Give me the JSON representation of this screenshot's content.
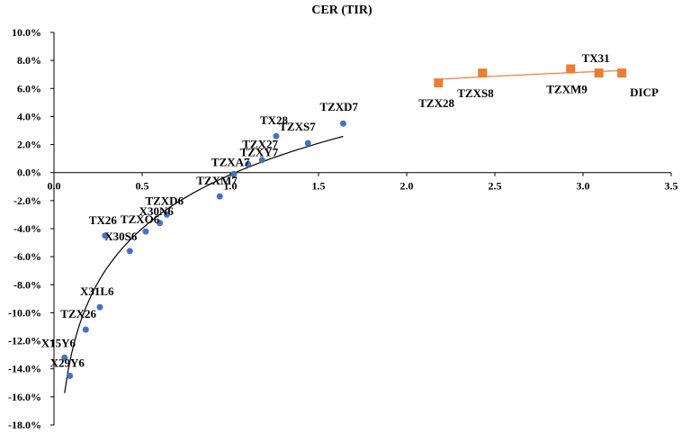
{
  "chart_data": {
    "type": "scatter",
    "title": "CER (TIR)",
    "xlabel": "",
    "ylabel": "",
    "xlim": [
      0,
      3.5
    ],
    "ylim": [
      -18,
      10
    ],
    "x_ticks": [
      "0.0",
      "0.5",
      "1.0",
      "1.5",
      "2.0",
      "2.5",
      "3.0",
      "3.5"
    ],
    "y_ticks": [
      "10.0%",
      "8.0%",
      "6.0%",
      "4.0%",
      "2.0%",
      "0.0%",
      "-2.0%",
      "-4.0%",
      "-6.0%",
      "-8.0%",
      "-10.0%",
      "-12.0%",
      "-14.0%",
      "-16.0%",
      "-18.0%"
    ],
    "grid": false,
    "legend": "none",
    "series": [
      {
        "marker": "circle",
        "color": "#4472c4",
        "trendline": "logarithmic",
        "trend_color": "#000000",
        "points": [
          {
            "label": "X29Y6",
            "x": 0.09,
            "y": -14.5
          },
          {
            "label": "X15Y6",
            "x": 0.06,
            "y": -13.2
          },
          {
            "label": "TZX26",
            "x": 0.18,
            "y": -11.2
          },
          {
            "label": "X31L6",
            "x": 0.26,
            "y": -9.6
          },
          {
            "label": "TX26",
            "x": 0.29,
            "y": -4.5
          },
          {
            "label": "X30S6",
            "x": 0.43,
            "y": -5.6
          },
          {
            "label": "TZXO6",
            "x": 0.52,
            "y": -4.2
          },
          {
            "label": "X30N6",
            "x": 0.6,
            "y": -3.6
          },
          {
            "label": "TZXD6",
            "x": 0.64,
            "y": -3.0
          },
          {
            "label": "TZXM7",
            "x": 0.94,
            "y": -1.7
          },
          {
            "label": "TZXA7",
            "x": 1.02,
            "y": -0.1
          },
          {
            "label": "TZXY7",
            "x": 1.1,
            "y": 0.6
          },
          {
            "label": "TZX27",
            "x": 1.18,
            "y": 0.9
          },
          {
            "label": "TX28",
            "x": 1.26,
            "y": 2.6
          },
          {
            "label": "TZXS7",
            "x": 1.44,
            "y": 2.1
          },
          {
            "label": "TZXD7",
            "x": 1.64,
            "y": 3.5
          }
        ]
      },
      {
        "marker": "square",
        "color": "#ed7d31",
        "trendline": "logarithmic",
        "trend_color": "#ed7d31",
        "points": [
          {
            "label": "TZX28",
            "x": 2.18,
            "y": 6.4
          },
          {
            "label": "TZXS8",
            "x": 2.43,
            "y": 7.1
          },
          {
            "label": "TZXM9",
            "x": 2.93,
            "y": 7.4
          },
          {
            "label": "TX31",
            "x": 3.09,
            "y": 7.1
          },
          {
            "label": "DICP",
            "x": 3.22,
            "y": 7.1
          }
        ]
      }
    ]
  }
}
